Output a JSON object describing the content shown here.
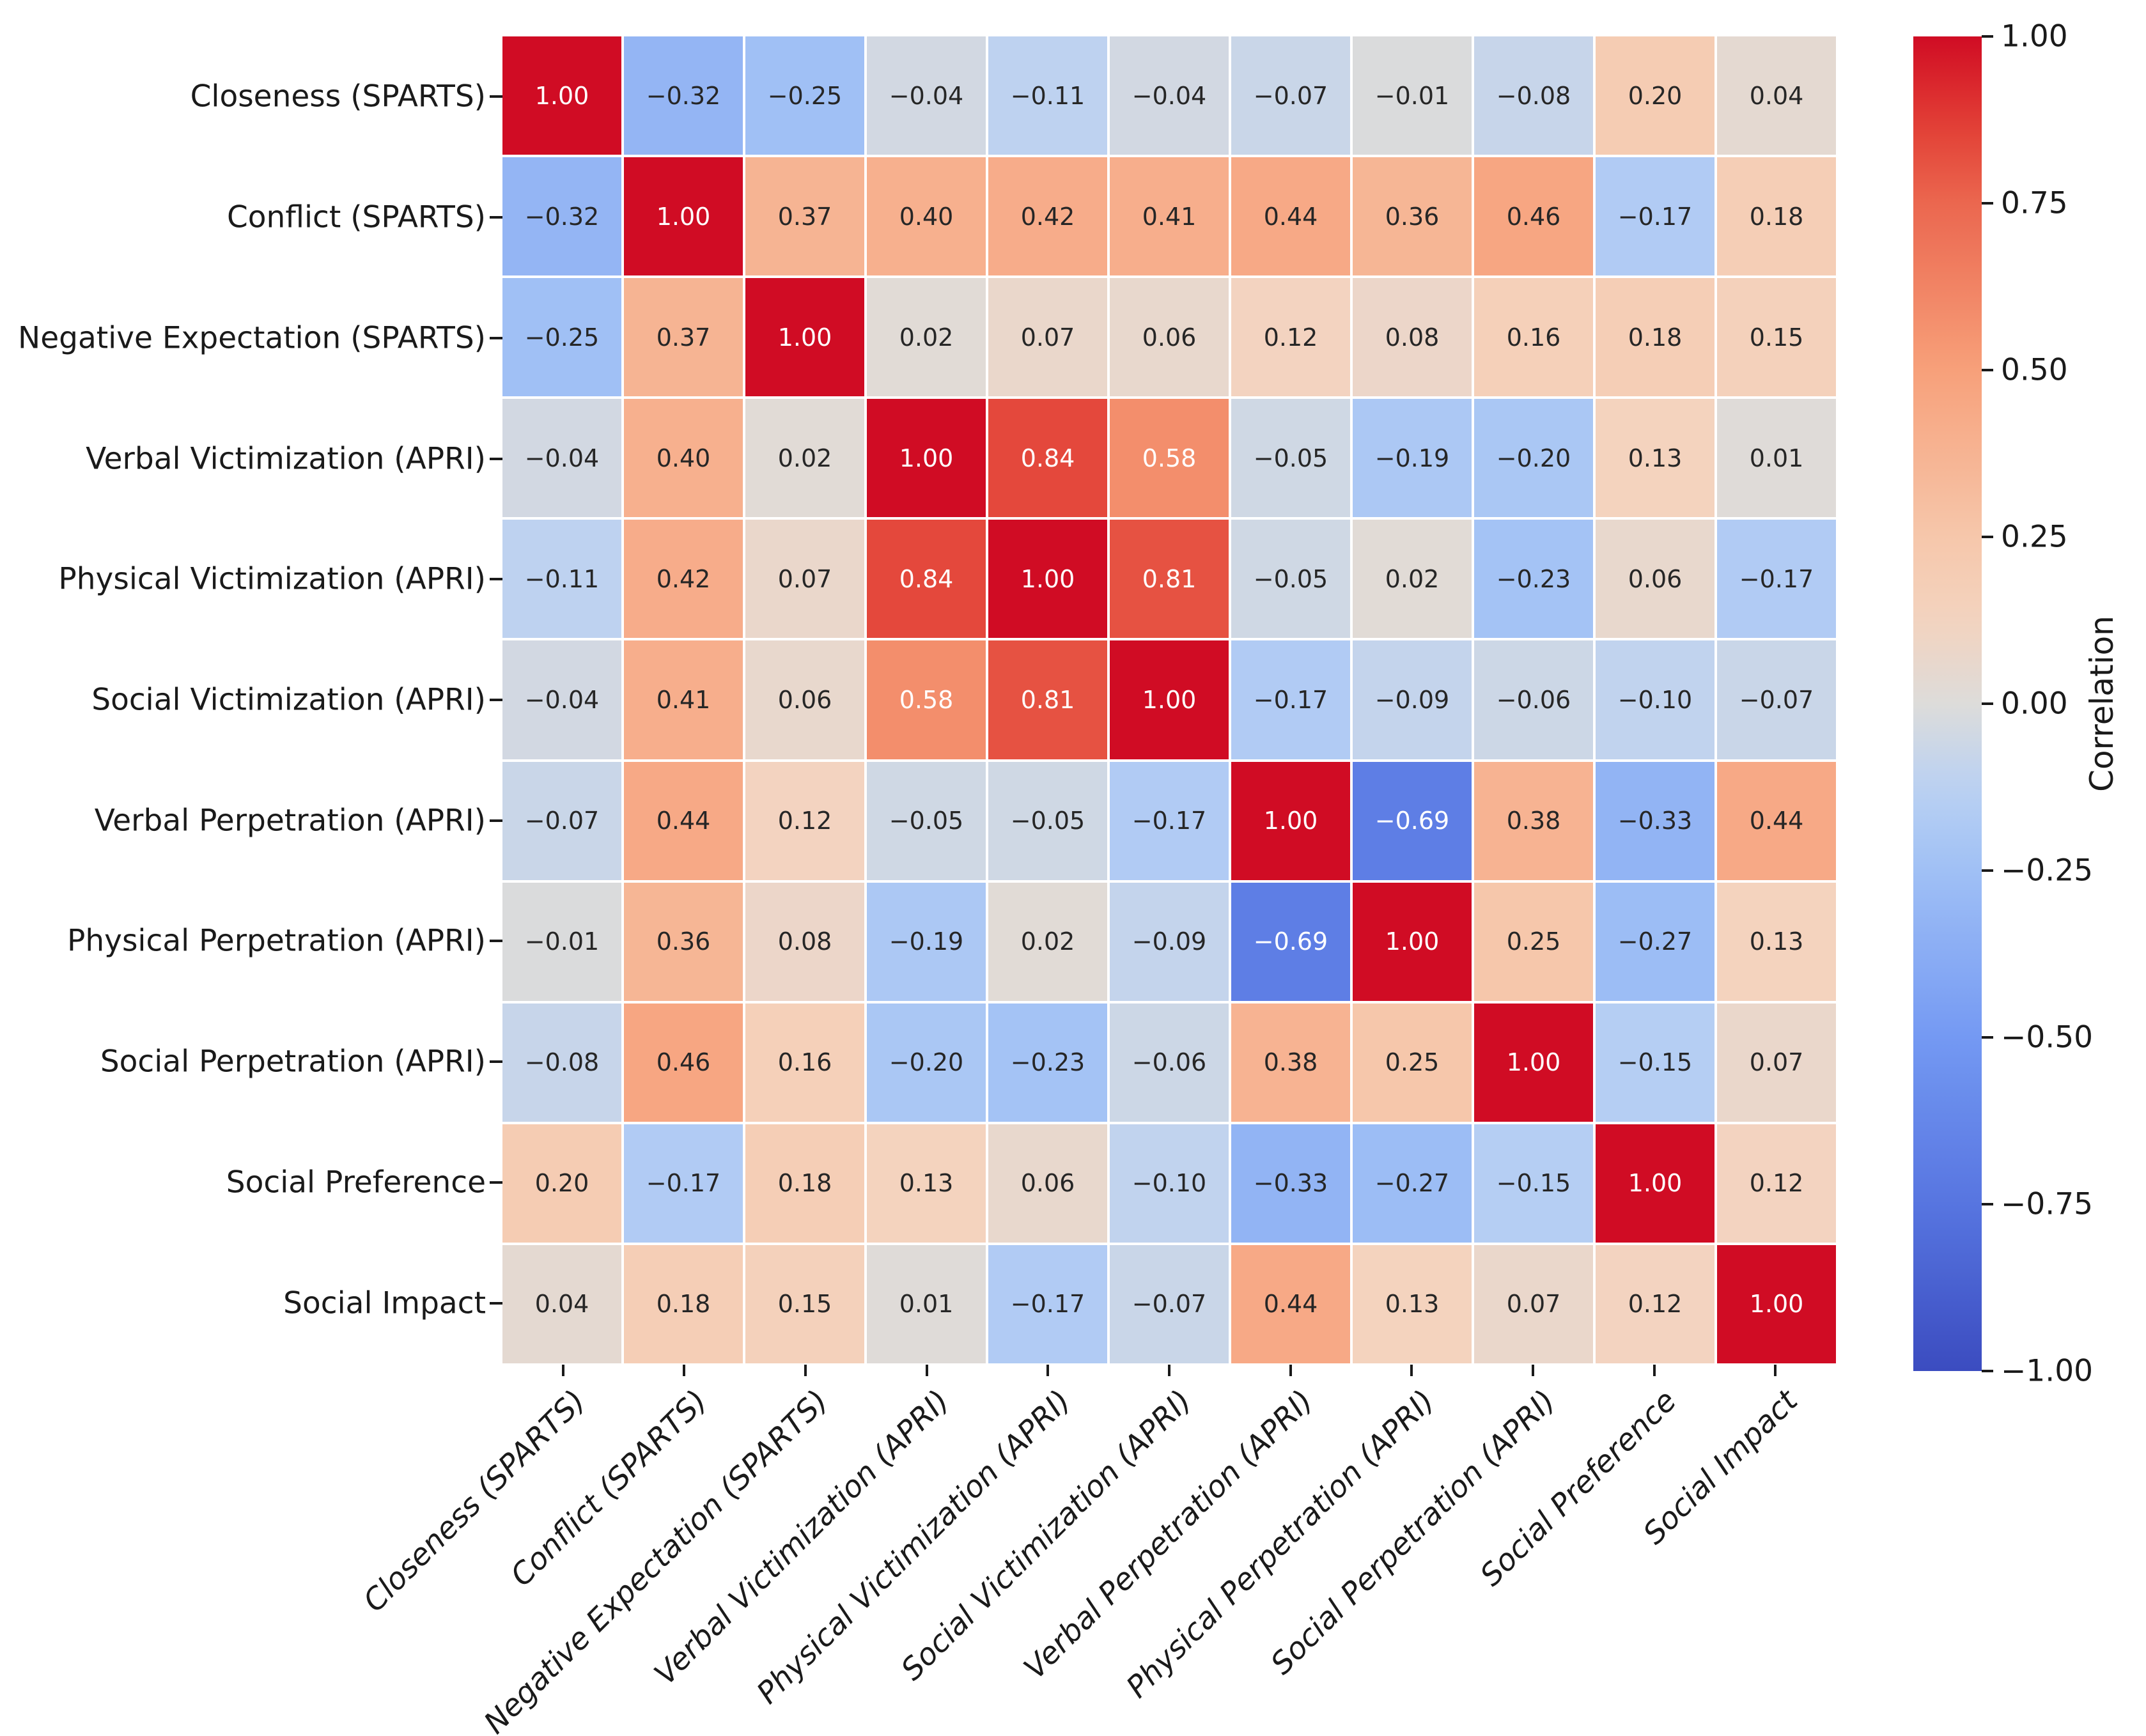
{
  "chart_data": {
    "type": "heatmap",
    "title": "",
    "variables": [
      "Closeness (SPARTS)",
      "Conflict (SPARTS)",
      "Negative Expectation (SPARTS)",
      "Verbal Victimization (APRI)",
      "Physical Victimization (APRI)",
      "Social Victimization (APRI)",
      "Verbal Perpetration (APRI)",
      "Physical Perpetration (APRI)",
      "Social Perpetration (APRI)",
      "Social Preference",
      "Social Impact"
    ],
    "matrix": [
      [
        1.0,
        -0.32,
        -0.25,
        -0.04,
        -0.11,
        -0.04,
        -0.07,
        -0.01,
        -0.08,
        0.2,
        0.04
      ],
      [
        -0.32,
        1.0,
        0.37,
        0.4,
        0.42,
        0.41,
        0.44,
        0.36,
        0.46,
        -0.17,
        0.18
      ],
      [
        -0.25,
        0.37,
        1.0,
        0.02,
        0.07,
        0.06,
        0.12,
        0.08,
        0.16,
        0.18,
        0.15
      ],
      [
        -0.04,
        0.4,
        0.02,
        1.0,
        0.84,
        0.58,
        -0.05,
        -0.19,
        -0.2,
        0.13,
        0.01
      ],
      [
        -0.11,
        0.42,
        0.07,
        0.84,
        1.0,
        0.81,
        -0.05,
        0.02,
        -0.23,
        0.06,
        -0.17
      ],
      [
        -0.04,
        0.41,
        0.06,
        0.58,
        0.81,
        1.0,
        -0.17,
        -0.09,
        -0.06,
        -0.1,
        -0.07
      ],
      [
        -0.07,
        0.44,
        0.12,
        -0.05,
        -0.05,
        -0.17,
        1.0,
        -0.69,
        0.38,
        -0.33,
        0.44
      ],
      [
        -0.01,
        0.36,
        0.08,
        -0.19,
        0.02,
        -0.09,
        -0.69,
        1.0,
        0.25,
        -0.27,
        0.13
      ],
      [
        -0.08,
        0.46,
        0.16,
        -0.2,
        -0.23,
        -0.06,
        0.38,
        0.25,
        1.0,
        -0.15,
        0.07
      ],
      [
        0.2,
        -0.17,
        0.18,
        0.13,
        0.06,
        -0.1,
        -0.33,
        -0.27,
        -0.15,
        1.0,
        0.12
      ],
      [
        0.04,
        0.18,
        0.15,
        0.01,
        -0.17,
        -0.07,
        0.44,
        0.13,
        0.07,
        0.12,
        1.0
      ]
    ],
    "colorbar": {
      "label": "Correlation",
      "tick_values": [
        1.0,
        0.75,
        0.5,
        0.25,
        0.0,
        -0.25,
        -0.5,
        -0.75,
        -1.0
      ],
      "vmin": -1.0,
      "vmax": 1.0
    },
    "colormap": {
      "name": "coolwarm",
      "stops": [
        {
          "t": 0.0,
          "rgb": [
            59,
            76,
            192
          ]
        },
        {
          "t": 0.125,
          "rgb": [
            87,
            117,
            224
          ]
        },
        {
          "t": 0.25,
          "rgb": [
            116,
            153,
            243
          ]
        },
        {
          "t": 0.375,
          "rgb": [
            160,
            192,
            245
          ]
        },
        {
          "t": 0.4375,
          "rgb": [
            186,
            209,
            243
          ]
        },
        {
          "t": 0.5,
          "rgb": [
            221,
            220,
            218
          ]
        },
        {
          "t": 0.5625,
          "rgb": [
            244,
            211,
            191
          ]
        },
        {
          "t": 0.625,
          "rgb": [
            246,
            199,
            171
          ]
        },
        {
          "t": 0.75,
          "rgb": [
            247,
            160,
            122
          ]
        },
        {
          "t": 0.875,
          "rgb": [
            235,
            103,
            79
          ]
        },
        {
          "t": 0.9375,
          "rgb": [
            225,
            60,
            52
          ]
        },
        {
          "t": 1.0,
          "rgb": [
            208,
            12,
            36
          ]
        }
      ]
    },
    "annotation_style": {
      "dark_text": "#262626",
      "light_text": "#ffffff",
      "light_text_abs_threshold": 0.5,
      "grid_line_color": "#ffffff"
    },
    "layout_hints": {
      "legend_position": "right-colorbar",
      "x_tick_rotation_deg": 45,
      "x_tick_style": "italic",
      "grid": "white cell separators"
    }
  }
}
